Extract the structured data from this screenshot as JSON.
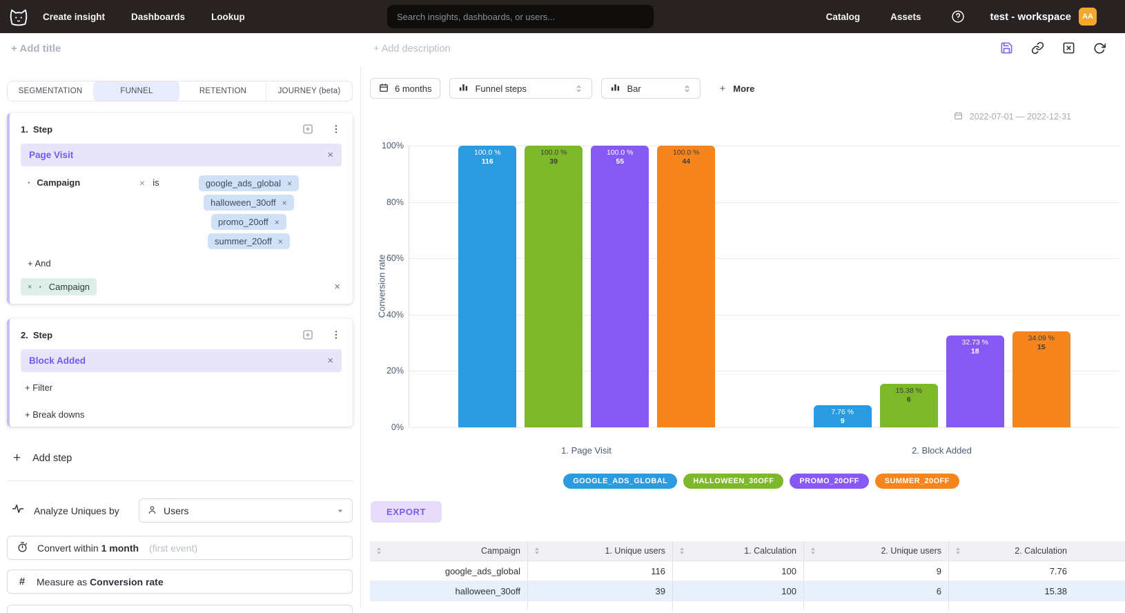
{
  "topnav": {
    "items": [
      "Create insight",
      "Dashboards",
      "Lookup"
    ],
    "search_placeholder": "Search insights, dashboards, or users...",
    "right_items": [
      "Catalog",
      "Assets"
    ],
    "workspace": "test - workspace",
    "avatar_initials": "AA",
    "avatar_color": "#f3a72e"
  },
  "titlebar": {
    "add_title": "+ Add title",
    "add_description": "+ Add description"
  },
  "panel": {
    "tabs": [
      {
        "label": "SEGMENTATION",
        "active": false
      },
      {
        "label": "FUNNEL",
        "active": true
      },
      {
        "label": "RETENTION",
        "active": false
      },
      {
        "label": "JOURNEY (beta)",
        "active": false
      }
    ],
    "step1": {
      "number": "1.",
      "title": "Step",
      "event": "Page Visit",
      "remove_glyph": "×",
      "filter_bullet": "·",
      "filter_property": "Campaign",
      "filter_operator": "is",
      "filter_values": [
        "google_ads_global",
        "halloween_30off",
        "promo_20off",
        "summer_20off"
      ],
      "and_link": "+ And",
      "breakdown_value": "Campaign"
    },
    "step2": {
      "number": "2.",
      "title": "Step",
      "event": "Block Added",
      "remove_glyph": "×",
      "filter_link": "+ Filter",
      "breakdown_link": "+ Break downs"
    },
    "add_step_plus": "+",
    "add_step_label": "Add step",
    "analyze_label": "Analyze Uniques by",
    "analyze_value": "Users",
    "convert_prefix": "Convert within",
    "convert_value": "1 month",
    "convert_hint": "(first event)",
    "measure_prefix": "Measure as",
    "measure_value": "Conversion rate",
    "hash_glyph": "#"
  },
  "toolbar": {
    "range_label": "6 months",
    "view_label": "Funnel steps",
    "chart_type_label": "Bar",
    "more_plus": "+",
    "more_label": "More",
    "date_range": "2022-07-01 — 2022-12-31"
  },
  "chart_data": {
    "type": "bar",
    "ylabel": "Conversion rate",
    "ylim": [
      0,
      100
    ],
    "grid": true,
    "legend_position": "bottom",
    "yticks": [
      {
        "value": 0,
        "label": "0%"
      },
      {
        "value": 20,
        "label": "20%"
      },
      {
        "value": 40,
        "label": "40%"
      },
      {
        "value": 60,
        "label": "60%"
      },
      {
        "value": 80,
        "label": "80%"
      },
      {
        "value": 100,
        "label": "100%"
      }
    ],
    "categories": [
      "1. Page Visit",
      "2. Block Added"
    ],
    "series": [
      {
        "name": "GOOGLE_ADS_GLOBAL",
        "color": "#2b9be0",
        "label_color": "#ffffff",
        "values": [
          100.0,
          7.76
        ],
        "counts": [
          116,
          9
        ],
        "pct_labels": [
          "100.0 %",
          "7.76 %"
        ]
      },
      {
        "name": "HALLOWEEN_30OFF",
        "color": "#7cb829",
        "label_color": "#3d3d3d",
        "values": [
          100.0,
          15.38
        ],
        "counts": [
          39,
          6
        ],
        "pct_labels": [
          "100.0 %",
          "15.38 %"
        ]
      },
      {
        "name": "PROMO_20OFF",
        "color": "#8659f4",
        "label_color": "#ffffff",
        "values": [
          100.0,
          32.73
        ],
        "counts": [
          55,
          18
        ],
        "pct_labels": [
          "100.0 %",
          "32.73 %"
        ]
      },
      {
        "name": "SUMMER_20OFF",
        "color": "#f6851d",
        "label_color": "#3d3d3d",
        "values": [
          100.0,
          34.09
        ],
        "counts": [
          44,
          15
        ],
        "pct_labels": [
          "100.0 %",
          "34.09 %"
        ]
      }
    ]
  },
  "export_label": "EXPORT",
  "table": {
    "columns": [
      "Campaign",
      "1. Unique users",
      "1. Calculation",
      "2. Unique users",
      "2. Calculation"
    ],
    "rows": [
      {
        "cells": [
          "google_ads_global",
          "116",
          "100",
          "9",
          "7.76"
        ],
        "highlight": false
      },
      {
        "cells": [
          "halloween_30off",
          "39",
          "100",
          "6",
          "15.38"
        ],
        "highlight": true
      }
    ],
    "highlight_color": "#e8f1fb"
  }
}
